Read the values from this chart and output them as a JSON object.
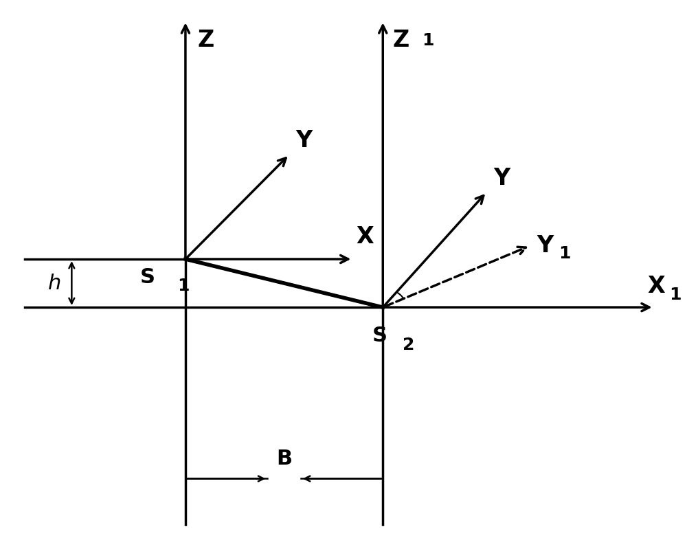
{
  "background_color": "#ffffff",
  "fig_width": 10.0,
  "fig_height": 7.93,
  "s1": [
    0.27,
    0.525
  ],
  "s2": [
    0.565,
    0.435
  ],
  "arrow_lw": 2.5,
  "thick_lw": 4.0,
  "label_Z": "Z",
  "label_X": "X",
  "label_Y_s1": "Y",
  "label_Z1": "Z",
  "label_X1": "X",
  "label_Y_s2": "Y",
  "label_Y1": "Y",
  "label_S1": "S",
  "label_S2": "S",
  "label_h": "h",
  "label_B": "B",
  "font_size": 22,
  "font_size_small": 18
}
